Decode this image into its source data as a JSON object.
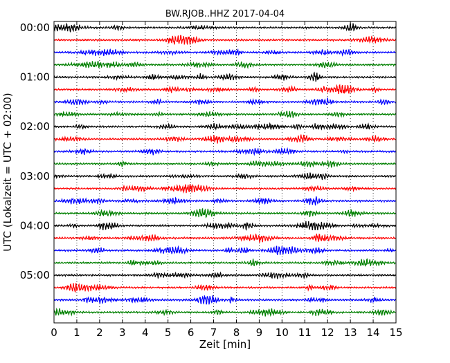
{
  "chart_data": {
    "type": "line",
    "title": "BW.RJOB..HHZ 2017-04-04",
    "xlabel": "Zeit  [min]",
    "ylabel": "UTC (Lokalzeit = UTC + 02:00)",
    "xlim": [
      0,
      15
    ],
    "x_ticks": [
      "0",
      "1",
      "2",
      "3",
      "4",
      "5",
      "6",
      "7",
      "8",
      "9",
      "10",
      "11",
      "12",
      "13",
      "14",
      "15"
    ],
    "y_tick_labels": [
      "00:00",
      "01:00",
      "02:00",
      "03:00",
      "04:00",
      "05:00"
    ],
    "grid": "vertical dotted lines at each minute",
    "trace_interval_minutes": 15,
    "trace_count": 24,
    "trace_colors": [
      "#000000",
      "#ff0000",
      "#0000ff",
      "#008000"
    ],
    "note_amplitudes": "relative seismogram amplitude, roughly constant background noise",
    "amplitude_scale": 1.0
  }
}
